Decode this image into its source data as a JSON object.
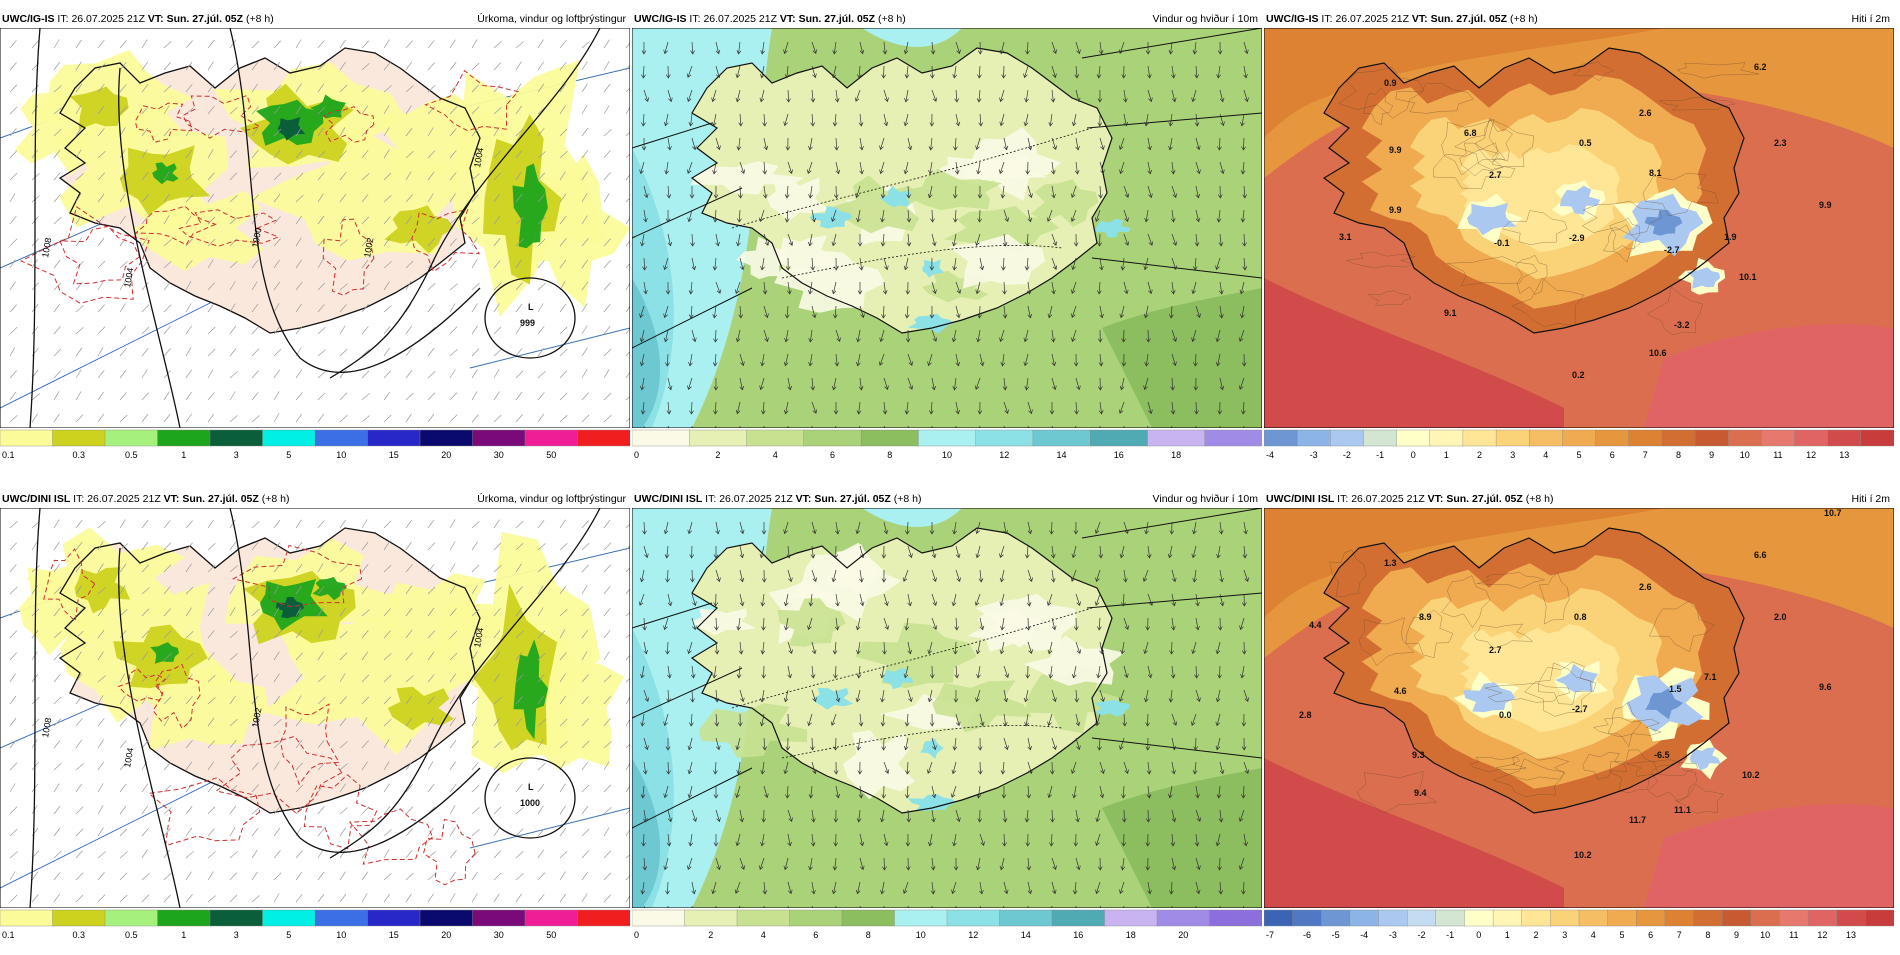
{
  "rows": [
    {
      "panels": [
        {
          "type": "precip",
          "model": "UWC/IG-IS",
          "it_label": "IT:",
          "it": "26.07.2025 21Z",
          "vt_label": "VT:",
          "vt": "Sun. 27.júl. 05Z",
          "lead": "(+8 h)",
          "title": "Úrkoma, vindur og loftþrýstingur",
          "pressure_low": {
            "letter": "L",
            "value": "999"
          },
          "isobars": [
            "1008",
            "1004",
            "1000",
            "1004",
            "1002"
          ]
        },
        {
          "type": "wind",
          "model": "UWC/IG-IS",
          "it_label": "IT:",
          "it": "26.07.2025 21Z",
          "vt_label": "VT:",
          "vt": "Sun. 27.júl. 05Z",
          "lead": "(+8 h)",
          "title": "Vindur og hviður í 10m"
        },
        {
          "type": "temp",
          "model": "UWC/IG-IS",
          "it_label": "IT:",
          "it": "26.07.2025 21Z",
          "vt_label": "VT:",
          "vt": "Sun. 27.júl. 05Z",
          "lead": "(+8 h)",
          "title": "Hiti í 2m",
          "values": [
            "0.9",
            "6.2",
            "2.6",
            "6.8",
            "9.9",
            "0.5",
            "2.3",
            "2.7",
            "8.1",
            "9.9",
            "9.9",
            "3.1",
            "-0.1",
            "-2.9",
            "-2.7",
            "1.9",
            "10.1",
            "9.1",
            "-3.2",
            "10.6",
            "0.2"
          ]
        }
      ]
    },
    {
      "panels": [
        {
          "type": "precip",
          "model": "UWC/DINI ISL",
          "it_label": "IT:",
          "it": "26.07.2025 21Z",
          "vt_label": "VT:",
          "vt": "Sun. 27.júl. 05Z",
          "lead": "(+8 h)",
          "title": "Úrkoma, vindur og loftþrýstingur",
          "pressure_low": {
            "letter": "L",
            "value": "1000"
          },
          "isobars": [
            "1008",
            "1004",
            "1002",
            "1004"
          ]
        },
        {
          "type": "wind",
          "model": "UWC/DINI ISL",
          "it_label": "IT:",
          "it": "26.07.2025 21Z",
          "vt_label": "VT:",
          "vt": "Sun. 27.júl. 05Z",
          "lead": "(+8 h)",
          "title": "Vindur og hviður í 10m"
        },
        {
          "type": "temp",
          "model": "UWC/DINI ISL",
          "it_label": "IT:",
          "it": "26.07.2025 21Z",
          "vt_label": "VT:",
          "vt": "Sun. 27.júl. 05Z",
          "lead": "(+8 h)",
          "title": "Hiti í 2m",
          "values": [
            "10.7",
            "1.3",
            "6.6",
            "2.6",
            "4.4",
            "8.9",
            "0.8",
            "2.0",
            "2.7",
            "7.1",
            "9.6",
            "4.6",
            "1.5",
            "2.8",
            "0.0",
            "-2.7",
            "9.3",
            "-6.5",
            "10.2",
            "9.4",
            "11.7",
            "11.1",
            "10.2"
          ]
        }
      ]
    }
  ],
  "legends": {
    "precip": {
      "labels": [
        "0.1",
        "0.3",
        "0.5",
        "1",
        "3",
        "5",
        "10",
        "15",
        "20",
        "30",
        "50"
      ],
      "colors": [
        "#fbfb9a",
        "#cdd21e",
        "#a6f07e",
        "#1ea51e",
        "#0b5e3a",
        "#00f0e6",
        "#3c6ee6",
        "#2828c8",
        "#0a0a6e",
        "#7a0a7a",
        "#f01e96",
        "#f01e1e"
      ]
    },
    "wind_top": {
      "labels": [
        "0",
        "2",
        "4",
        "6",
        "8",
        "10",
        "12",
        "14",
        "16",
        "18"
      ],
      "colors": [
        "#fafae6",
        "#e6f0b4",
        "#c8e191",
        "#aad278",
        "#8cbe5f",
        "#aaf0f0",
        "#8ce1e6",
        "#6ec8d2",
        "#50aab4",
        "#c8b4f0",
        "#a08ce6"
      ]
    },
    "wind_bottom": {
      "labels": [
        "0",
        "2",
        "4",
        "6",
        "8",
        "10",
        "12",
        "14",
        "16",
        "18",
        "20"
      ],
      "colors": [
        "#fafae6",
        "#e6f0b4",
        "#c8e191",
        "#aad278",
        "#8cbe5f",
        "#aaf0f0",
        "#8ce1e6",
        "#6ec8d2",
        "#50aab4",
        "#c8b4f0",
        "#a08ce6",
        "#8c6edc"
      ]
    },
    "temp_top": {
      "labels": [
        "-4",
        "-3",
        "-2",
        "-1",
        "0",
        "1",
        "2",
        "3",
        "4",
        "5",
        "6",
        "7",
        "8",
        "9",
        "10",
        "11",
        "12",
        "13"
      ],
      "colors": [
        "#6e96d2",
        "#8cb4e6",
        "#aac8f0",
        "#d2e6d2",
        "#ffffc8",
        "#fff5b4",
        "#ffe696",
        "#fad278",
        "#f5be64",
        "#f0aa50",
        "#e6963c",
        "#dc8232",
        "#d26e32",
        "#c85a32",
        "#dc6e50",
        "#e6786e",
        "#e06464",
        "#d24b4b",
        "#c83c3c"
      ]
    },
    "temp_bottom": {
      "labels": [
        "-7",
        "-6",
        "-5",
        "-4",
        "-3",
        "-2",
        "-1",
        "0",
        "1",
        "2",
        "3",
        "4",
        "5",
        "6",
        "7",
        "8",
        "9",
        "10",
        "11",
        "12",
        "13"
      ],
      "colors": [
        "#3c64b4",
        "#5078c3",
        "#6e96d2",
        "#8cb4e6",
        "#aac8f0",
        "#c3dcf0",
        "#d2e6d2",
        "#ffffc8",
        "#fff5b4",
        "#ffe696",
        "#fad278",
        "#f5be64",
        "#f0aa50",
        "#e6963c",
        "#dc8232",
        "#d26e32",
        "#c85a32",
        "#dc6e50",
        "#e6786e",
        "#e06464",
        "#d24b4b",
        "#c83c3c"
      ]
    }
  }
}
